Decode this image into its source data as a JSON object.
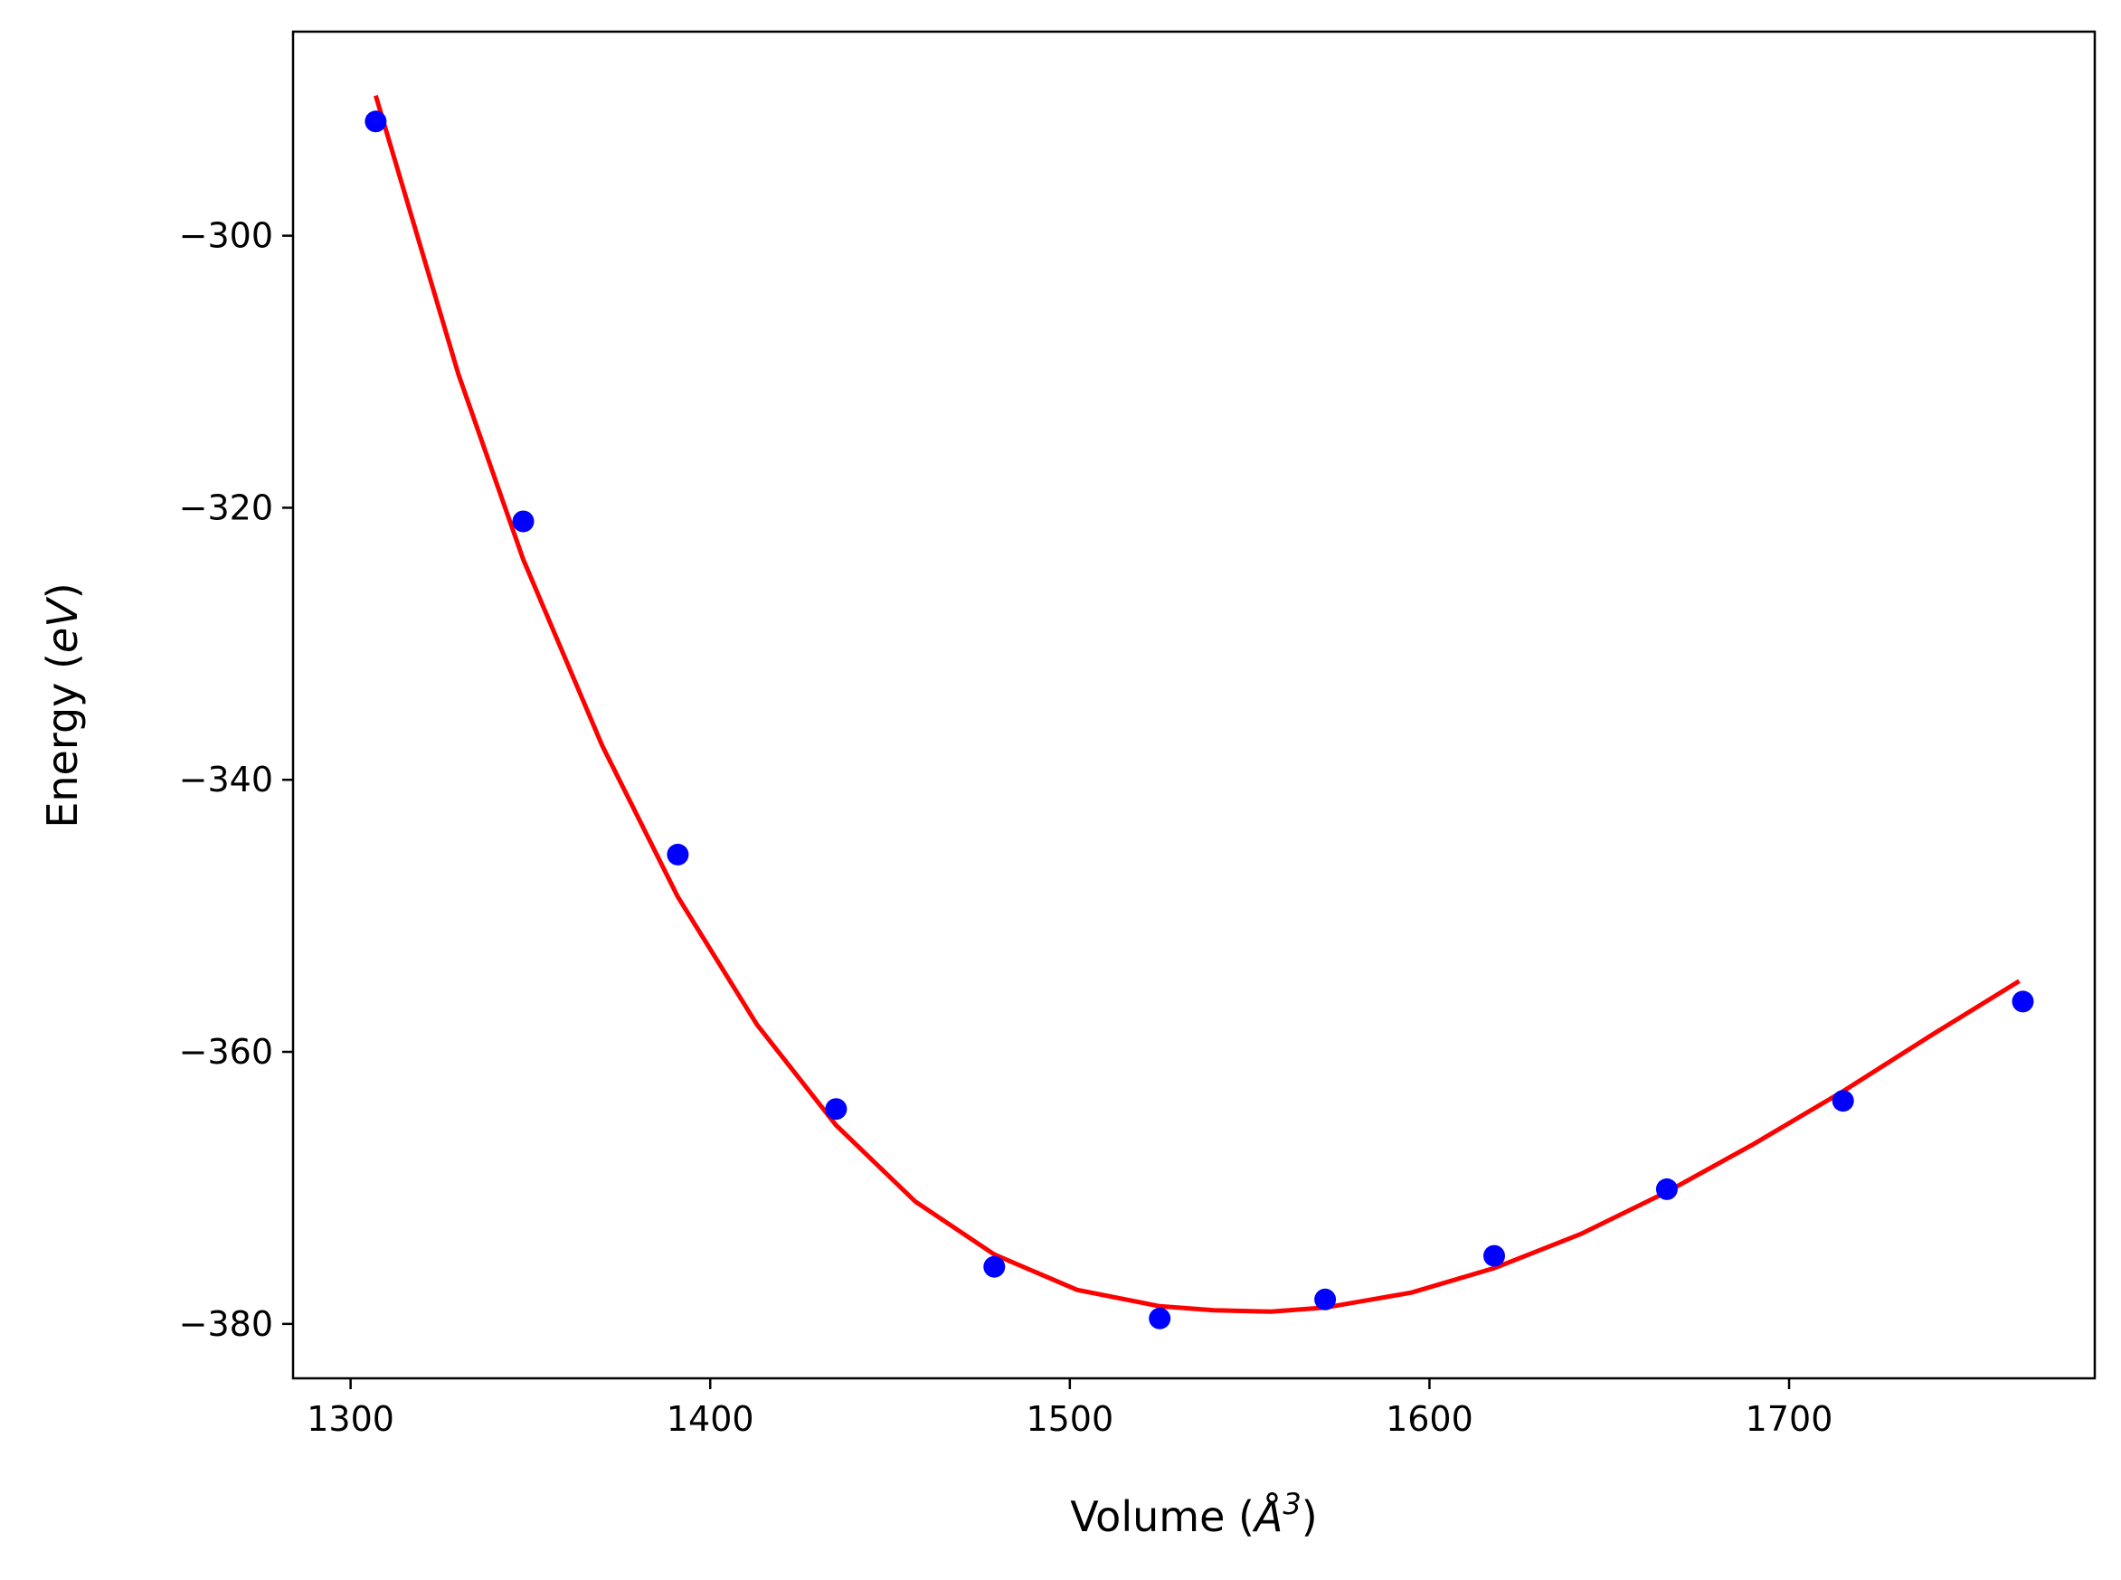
{
  "chart_data": {
    "type": "scatter",
    "xlabel": "Volume (",
    "xlabel_symbol": "Å",
    "xlabel_exp": "3",
    "xlabel_close": ")",
    "ylabel": "Energy (",
    "ylabel_unit": "eV",
    "ylabel_close": ")",
    "xlim": [
      1284,
      1785
    ],
    "ylim": [
      -384,
      -285
    ],
    "xticks": [
      1300,
      1400,
      1500,
      1600,
      1700
    ],
    "xtick_labels": [
      "1300",
      "1400",
      "1500",
      "1600",
      "1700"
    ],
    "yticks": [
      -300,
      -320,
      -340,
      -360,
      -380
    ],
    "ytick_labels": [
      "−300",
      "−320",
      "−340",
      "−360",
      "−380"
    ],
    "grid": false,
    "legend": false,
    "series": [
      {
        "kind": "points",
        "color": "#0000ff",
        "x": [
          1307,
          1348,
          1391,
          1435,
          1479,
          1525,
          1571,
          1618,
          1666,
          1715,
          1765
        ],
        "y": [
          -291.6,
          -321.0,
          -345.5,
          -364.2,
          -375.8,
          -379.6,
          -378.2,
          -375.0,
          -370.1,
          -363.6,
          -356.3
        ]
      },
      {
        "kind": "curve",
        "color": "#ff0000",
        "x": [
          1307,
          1330,
          1348,
          1370,
          1391,
          1413,
          1435,
          1457,
          1479,
          1502,
          1525,
          1540,
          1556,
          1571,
          1595,
          1618,
          1642,
          1666,
          1690,
          1715,
          1740,
          1764
        ],
        "y": [
          -289.7,
          -310.2,
          -323.8,
          -337.5,
          -348.6,
          -358.0,
          -365.4,
          -371.0,
          -374.9,
          -377.5,
          -378.7,
          -379.0,
          -379.1,
          -378.8,
          -377.7,
          -375.9,
          -373.4,
          -370.3,
          -366.8,
          -362.9,
          -358.7,
          -354.8
        ]
      }
    ]
  }
}
